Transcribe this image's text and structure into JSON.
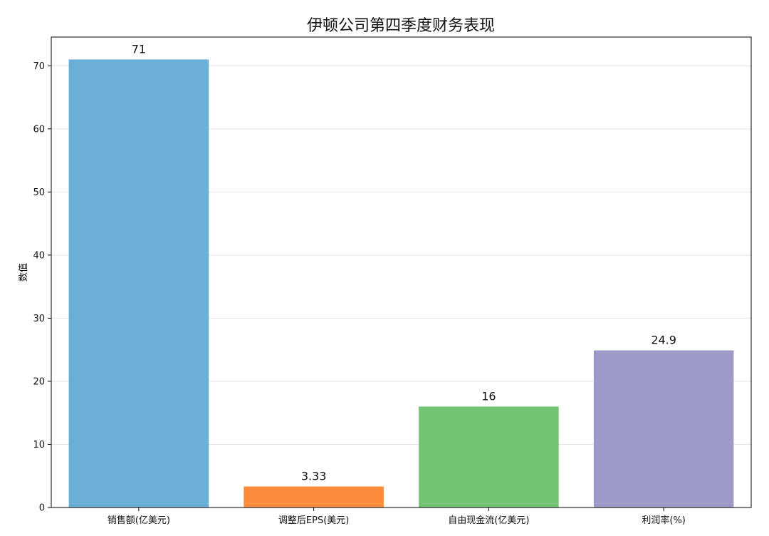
{
  "chart_data": {
    "type": "bar",
    "title": "伊顿公司第四季度财务表现",
    "xlabel": "",
    "ylabel": "数值",
    "categories": [
      "销售额(亿美元)",
      "调整后EPS(美元)",
      "自由现金流(亿美元)",
      "利润率(%)"
    ],
    "values": [
      71,
      3.33,
      16,
      24.9
    ],
    "data_labels": [
      "71",
      "3.33",
      "16",
      "24.9"
    ],
    "colors": [
      "#6baed6",
      "#fd8d3c",
      "#74c476",
      "#9e9ac8"
    ],
    "ylim": [
      0,
      74.55
    ],
    "yticks": [
      0,
      10,
      20,
      30,
      40,
      50,
      60,
      70
    ],
    "grid": "y",
    "legend": "none"
  }
}
